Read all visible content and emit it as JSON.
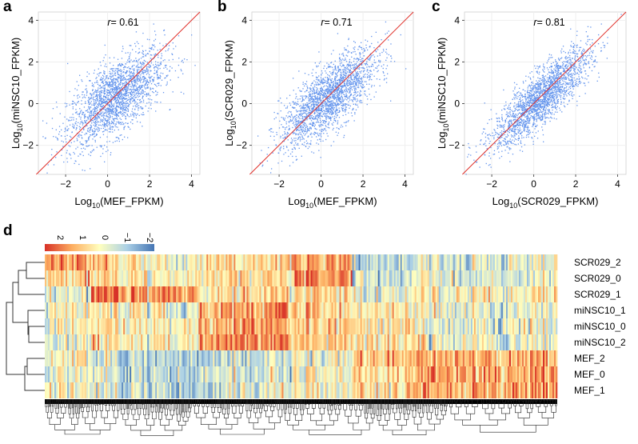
{
  "chart_data": [
    {
      "panel": "a",
      "type": "scatter",
      "xlabel_base": "Log",
      "xlabel_sub": "10",
      "xlabel_rest": "(MEF_FPKM)",
      "ylabel_base": "Log",
      "ylabel_sub": "10",
      "ylabel_rest": "(miNSC10_FPKM)",
      "annotation_r": "r",
      "annotation_value": "= 0.61",
      "r": 0.61,
      "xlim": [
        -3.3,
        4.4
      ],
      "ylim": [
        -3.4,
        4.4
      ],
      "xticks": [
        "-2",
        "0",
        "2",
        "4"
      ],
      "yticks": [
        "-2",
        "0",
        "2",
        "4"
      ],
      "grid": true,
      "reference_line": "y = x",
      "point_color": "#6495ED",
      "line_color": "#E0302A"
    },
    {
      "panel": "b",
      "type": "scatter",
      "xlabel_base": "Log",
      "xlabel_sub": "10",
      "xlabel_rest": "(MEF_FPKM)",
      "ylabel_base": "Log",
      "ylabel_sub": "10",
      "ylabel_rest": "(SCR029_FPKM)",
      "annotation_r": "r",
      "annotation_value": "= 0.71",
      "r": 0.71,
      "xlim": [
        -3.3,
        4.4
      ],
      "ylim": [
        -3.4,
        4.4
      ],
      "xticks": [
        "-2",
        "0",
        "2",
        "4"
      ],
      "yticks": [
        "-2",
        "0",
        "2",
        "4"
      ],
      "grid": true,
      "reference_line": "y = x",
      "point_color": "#6495ED",
      "line_color": "#E0302A"
    },
    {
      "panel": "c",
      "type": "scatter",
      "xlabel_base": "Log",
      "xlabel_sub": "10",
      "xlabel_rest": "(SCR029_FPKM)",
      "ylabel_base": "Log",
      "ylabel_sub": "10",
      "ylabel_rest": "(miNSC10_FPKM)",
      "annotation_r": "r",
      "annotation_value": "= 0.81",
      "r": 0.81,
      "xlim": [
        -3.3,
        4.4
      ],
      "ylim": [
        -3.4,
        4.4
      ],
      "xticks": [
        "-2",
        "0",
        "2",
        "4"
      ],
      "yticks": [
        "-2",
        "0",
        "2",
        "4"
      ],
      "grid": true,
      "reference_line": "y = x",
      "point_color": "#6495ED",
      "line_color": "#E0302A"
    },
    {
      "panel": "d",
      "type": "heatmap",
      "rows": [
        "SCR029_2",
        "SCR029_0",
        "SCR029_1",
        "miNSC10_1",
        "miNSC10_0",
        "miNSC10_2",
        "MEF_2",
        "MEF_0",
        "MEF_1"
      ],
      "colorbar_ticks": [
        "2",
        "1",
        "0",
        "−1",
        "−2"
      ],
      "color_range": [
        2,
        -2
      ],
      "colors": {
        "high": "#D73027",
        "mid_high": "#FDAE61",
        "mid": "#FFFFBF",
        "mid_low": "#ABD0E6",
        "low": "#4575B4"
      },
      "row_dendrogram": true,
      "column_dendrogram": true
    }
  ],
  "panel_labels": [
    "a",
    "b",
    "c",
    "d"
  ]
}
